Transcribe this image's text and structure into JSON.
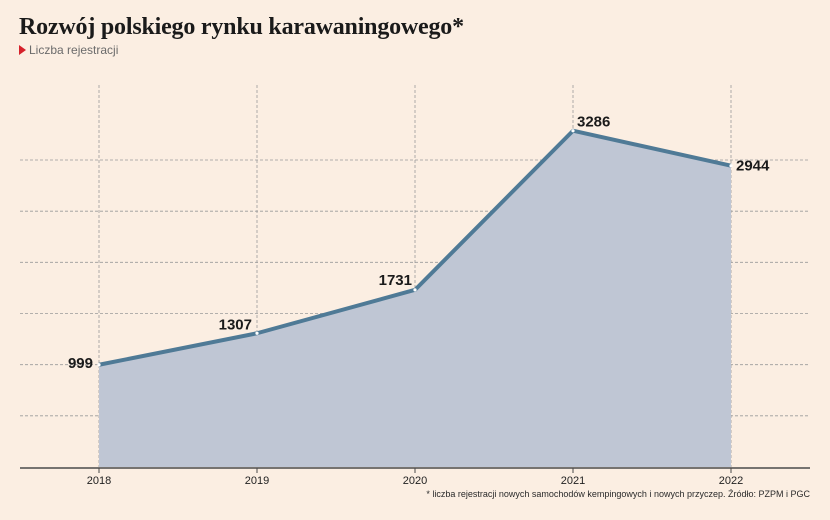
{
  "title": "Rozwój polskiego rynku karawaningowego*",
  "subtitle": "Liczba rejestracji",
  "footnote": "* liczba rejestracji nowych samochodów kempingowych  i nowych przyczep. Źródło: PZPM i PGC",
  "colors": {
    "background": "#fbeee2",
    "line": "#4f7a96",
    "area": "#bfc6d4",
    "grid": "#9a9a9a",
    "axis": "#4a4a4a",
    "marker": "#d6212b"
  },
  "chart_data": {
    "type": "area",
    "title": "Rozwój polskiego rynku karawaningowego*",
    "subtitle": "Liczba rejestracji",
    "x": [
      "2018",
      "2019",
      "2020",
      "2021",
      "2022"
    ],
    "series": [
      {
        "values": [
          999,
          1307,
          1731,
          3286,
          2944
        ]
      }
    ],
    "data_labels": [
      "999",
      "1307",
      "1731",
      "3286",
      "2944"
    ],
    "ylim": [
      0,
      3500
    ],
    "y_gridlines": [
      500,
      1000,
      1500,
      2000,
      2500,
      3000
    ],
    "grid": true,
    "legend": "none"
  }
}
